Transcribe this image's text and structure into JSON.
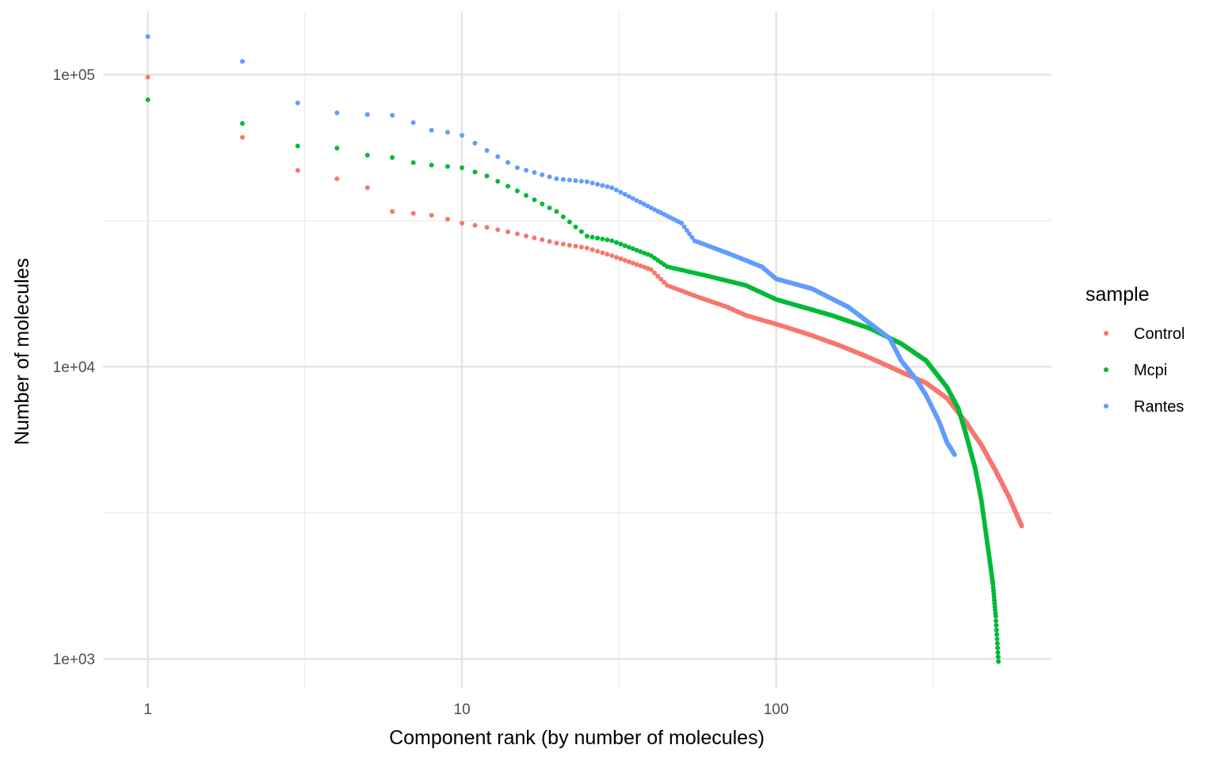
{
  "chart_data": {
    "type": "scatter",
    "xlabel": "Component rank (by number of molecules)",
    "ylabel": "Number of molecules",
    "x_scale": "log10",
    "y_scale": "log10",
    "xlim": [
      0.72,
      752
    ],
    "ylim": [
      790,
      165000
    ],
    "x_ticks": [
      {
        "value": 1,
        "label": "1"
      },
      {
        "value": 10,
        "label": "10"
      },
      {
        "value": 100,
        "label": "100"
      }
    ],
    "x_minor_ticks": [
      3.1623,
      31.623,
      316.23
    ],
    "y_ticks": [
      {
        "value": 1000,
        "label": "1e+03"
      },
      {
        "value": 10000,
        "label": "1e+04"
      },
      {
        "value": 100000,
        "label": "1e+05"
      }
    ],
    "y_minor_ticks": [
      3162.3,
      31623
    ],
    "grid": true,
    "legend": {
      "title": "sample",
      "position": "right"
    },
    "series": [
      {
        "name": "Control",
        "color": "#F8766D",
        "anchors": [
          [
            1,
            98000
          ],
          [
            2,
            61000
          ],
          [
            3,
            47000
          ],
          [
            4,
            44000
          ],
          [
            5,
            41000
          ],
          [
            6,
            34000
          ],
          [
            7,
            33500
          ],
          [
            8,
            33000
          ],
          [
            9,
            32000
          ],
          [
            10,
            31000
          ],
          [
            12,
            30000
          ],
          [
            15,
            28500
          ],
          [
            20,
            26500
          ],
          [
            25,
            25500
          ],
          [
            30,
            24000
          ],
          [
            40,
            21500
          ],
          [
            45,
            19000
          ],
          [
            55,
            17500
          ],
          [
            70,
            16000
          ],
          [
            80,
            15000
          ],
          [
            100,
            14000
          ],
          [
            130,
            12800
          ],
          [
            160,
            11800
          ],
          [
            200,
            10700
          ],
          [
            250,
            9600
          ],
          [
            300,
            8800
          ],
          [
            350,
            7800
          ],
          [
            400,
            6500
          ],
          [
            450,
            5400
          ],
          [
            500,
            4400
          ],
          [
            550,
            3600
          ],
          [
            605,
            2850
          ]
        ]
      },
      {
        "name": "Mcpi",
        "color": "#00BA38",
        "anchors": [
          [
            1,
            82000
          ],
          [
            2,
            68000
          ],
          [
            3,
            57000
          ],
          [
            4,
            56000
          ],
          [
            5,
            53000
          ],
          [
            6,
            52000
          ],
          [
            7,
            50000
          ],
          [
            8,
            49000
          ],
          [
            9,
            48500
          ],
          [
            10,
            48000
          ],
          [
            12,
            45000
          ],
          [
            15,
            40000
          ],
          [
            20,
            34000
          ],
          [
            25,
            28000
          ],
          [
            30,
            27000
          ],
          [
            40,
            24000
          ],
          [
            45,
            22000
          ],
          [
            60,
            20500
          ],
          [
            80,
            19000
          ],
          [
            100,
            17000
          ],
          [
            150,
            15000
          ],
          [
            200,
            13500
          ],
          [
            250,
            12000
          ],
          [
            300,
            10500
          ],
          [
            350,
            8500
          ],
          [
            380,
            7200
          ],
          [
            400,
            6000
          ],
          [
            430,
            4500
          ],
          [
            450,
            3500
          ],
          [
            470,
            2500
          ],
          [
            490,
            1800
          ],
          [
            500,
            1400
          ],
          [
            510,
            980
          ]
        ]
      },
      {
        "name": "Rantes",
        "color": "#619CFF",
        "anchors": [
          [
            1,
            135000
          ],
          [
            2,
            111000
          ],
          [
            3,
            80000
          ],
          [
            4,
            74000
          ],
          [
            5,
            73000
          ],
          [
            6,
            72500
          ],
          [
            7,
            68500
          ],
          [
            8,
            64500
          ],
          [
            9,
            63500
          ],
          [
            10,
            62000
          ],
          [
            12,
            55000
          ],
          [
            15,
            48000
          ],
          [
            20,
            44000
          ],
          [
            25,
            43000
          ],
          [
            30,
            41000
          ],
          [
            40,
            35000
          ],
          [
            50,
            31000
          ],
          [
            55,
            27000
          ],
          [
            70,
            24500
          ],
          [
            90,
            22000
          ],
          [
            100,
            20000
          ],
          [
            130,
            18500
          ],
          [
            170,
            16000
          ],
          [
            200,
            14000
          ],
          [
            230,
            12500
          ],
          [
            250,
            10500
          ],
          [
            280,
            9000
          ],
          [
            300,
            8000
          ],
          [
            330,
            6500
          ],
          [
            350,
            5500
          ],
          [
            370,
            5000
          ]
        ]
      }
    ]
  }
}
